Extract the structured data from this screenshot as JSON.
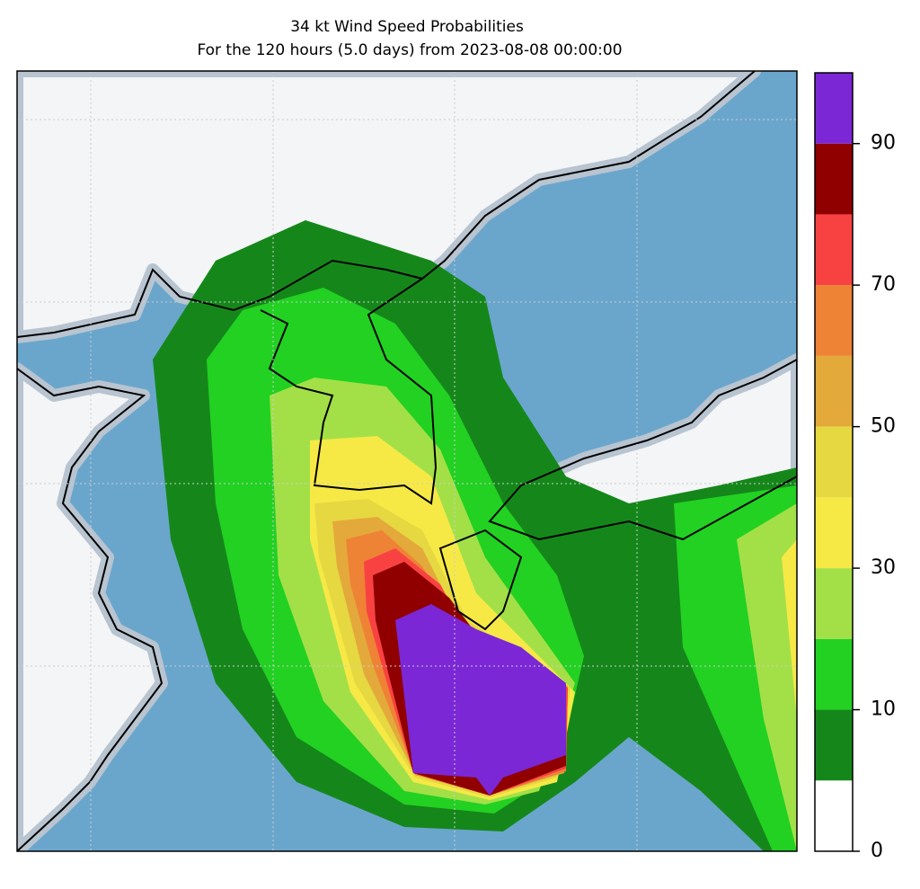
{
  "header": {
    "title": "34 kt Wind Speed Probabilities",
    "subtitle": "For the 120 hours (5.0 days) from 2023-08-08 00:00:00"
  },
  "colorbar": {
    "levels": [
      0,
      5,
      10,
      20,
      30,
      40,
      50,
      60,
      70,
      80,
      90,
      100
    ],
    "colors": [
      "#ffffff",
      "#15871a",
      "#22d122",
      "#a3e048",
      "#f6e946",
      "#e6d840",
      "#e4a93b",
      "#ee8235",
      "#f84242",
      "#900000",
      "#7b27d6"
    ],
    "ticks": [
      0,
      10,
      30,
      50,
      70,
      90
    ]
  }
}
